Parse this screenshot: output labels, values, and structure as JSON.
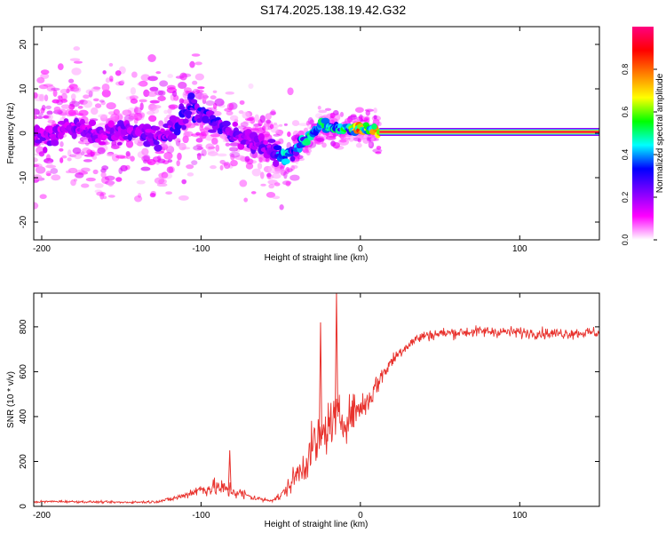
{
  "title": "S174.2025.138.19.42.G32",
  "chart_data": [
    {
      "type": "heatmap",
      "xlabel": "Height of straight line (km)",
      "ylabel": "Frequency (Hz)",
      "xlim": [
        -205,
        150
      ],
      "ylim": [
        -24,
        24
      ],
      "x_ticks": [
        -200,
        -100,
        0,
        100
      ],
      "y_ticks": [
        -20,
        -10,
        0,
        10,
        20
      ],
      "colorbar": {
        "label": "Normalized spectral amplitude",
        "range": [
          0,
          1
        ],
        "ticks": [
          0.0,
          0.2,
          0.4,
          0.6,
          0.8
        ],
        "colormap": [
          "#ffffff",
          "#ff00ff",
          "#8000ff",
          "#0000ff",
          "#00ffff",
          "#00ff00",
          "#ffff00",
          "#ff8000",
          "#ff0000",
          "#ff0080"
        ]
      },
      "ridge": {
        "x": [
          -205,
          -195,
          -185,
          -175,
          -165,
          -155,
          -145,
          -135,
          -125,
          -115,
          -105,
          -95,
          -85,
          -75,
          -65,
          -55,
          -48,
          -42,
          -36,
          -30,
          -24,
          -18,
          -12,
          -6,
          0,
          6,
          12,
          150
        ],
        "y": [
          -1,
          0,
          1,
          1,
          0,
          0,
          1,
          0,
          -1,
          2,
          6,
          3,
          1,
          -1,
          -2,
          -4,
          -5,
          -4,
          -2,
          0,
          2,
          1,
          1,
          1,
          1,
          1,
          0.3,
          0.3
        ],
        "amplitude": [
          0.2,
          0.2,
          0.2,
          0.2,
          0.2,
          0.2,
          0.22,
          0.22,
          0.22,
          0.25,
          0.3,
          0.28,
          0.25,
          0.22,
          0.22,
          0.22,
          0.45,
          0.35,
          0.4,
          0.45,
          0.45,
          0.45,
          0.45,
          0.5,
          0.75,
          0.55,
          0.9,
          0.9
        ]
      }
    },
    {
      "type": "line",
      "xlabel": "Height of straight line (km)",
      "ylabel": "SNR (10 * v/v)",
      "xlim": [
        -205,
        150
      ],
      "ylim": [
        0,
        950
      ],
      "x_ticks": [
        -200,
        -100,
        0,
        100
      ],
      "y_ticks": [
        0,
        200,
        400,
        600,
        800
      ],
      "series": [
        {
          "color": "#e8322d",
          "x": [
            -205,
            -190,
            -170,
            -150,
            -130,
            -120,
            -112,
            -105,
            -100,
            -95,
            -90,
            -85,
            -80,
            -75,
            -70,
            -65,
            -60,
            -55,
            -50,
            -45,
            -40,
            -35,
            -30,
            -25,
            -20,
            -15,
            -10,
            -5,
            0,
            5,
            10,
            15,
            20,
            25,
            30,
            35,
            40,
            50,
            60,
            80,
            100,
            120,
            150
          ],
          "y": [
            20,
            22,
            20,
            18,
            20,
            30,
            45,
            65,
            75,
            80,
            85,
            75,
            70,
            55,
            45,
            35,
            28,
            30,
            45,
            90,
            140,
            190,
            260,
            300,
            360,
            400,
            380,
            420,
            440,
            470,
            540,
            600,
            650,
            690,
            720,
            745,
            760,
            770,
            775,
            780,
            775,
            770,
            775
          ],
          "noise": [
            5,
            5,
            5,
            5,
            6,
            10,
            15,
            25,
            30,
            35,
            40,
            40,
            40,
            30,
            20,
            12,
            10,
            12,
            20,
            40,
            60,
            80,
            110,
            110,
            110,
            90,
            90,
            80,
            70,
            60,
            50,
            40,
            35,
            30,
            25,
            25,
            25,
            25,
            25,
            25,
            25,
            25,
            25
          ]
        }
      ],
      "peaks": [
        {
          "x": -15,
          "y": 950
        },
        {
          "x": -25,
          "y": 820
        },
        {
          "x": -82,
          "y": 250
        }
      ]
    }
  ]
}
